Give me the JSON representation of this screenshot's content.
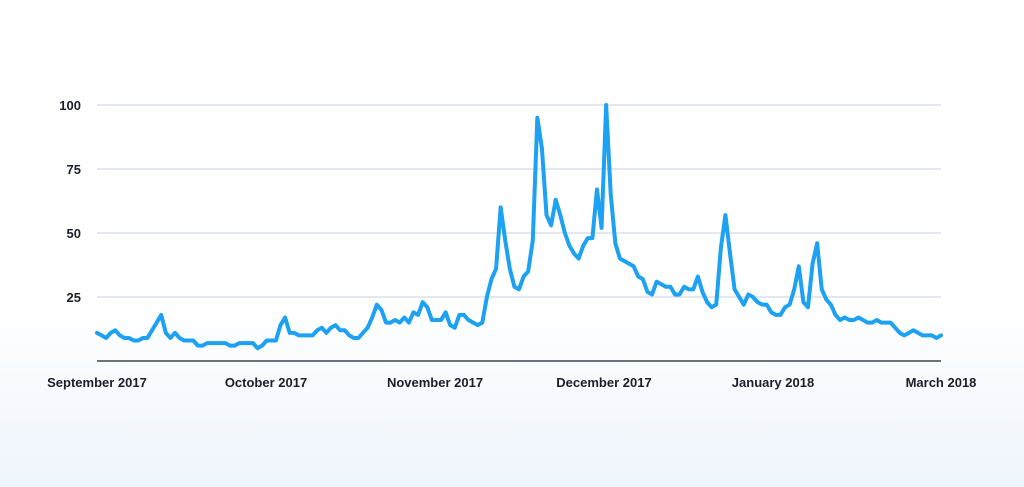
{
  "chart_data": {
    "type": "line",
    "title": "",
    "xlabel": "",
    "ylabel": "",
    "ylim": [
      0,
      100
    ],
    "yticks": [
      25,
      50,
      75,
      100
    ],
    "grid": true,
    "x_tick_labels": [
      "September 2017",
      "October 2017",
      "November 2017",
      "December 2017",
      "January 2018",
      "March 2018"
    ],
    "series_color": "#1da1f2",
    "series": [
      {
        "values": [
          11,
          10,
          9,
          11,
          12,
          10,
          9,
          9,
          8,
          8,
          9,
          9,
          12,
          15,
          18,
          11,
          9,
          11,
          9,
          8,
          8,
          8,
          6,
          6,
          7,
          7,
          7,
          7,
          7,
          6,
          6,
          7,
          7,
          7,
          7,
          5,
          6,
          8,
          8,
          8,
          14,
          17,
          11,
          11,
          10,
          10,
          10,
          10,
          12,
          13,
          11,
          13,
          14,
          12,
          12,
          10,
          9,
          9,
          11,
          13,
          17,
          22,
          20,
          15,
          15,
          16,
          15,
          17,
          15,
          19,
          18,
          23,
          21,
          16,
          16,
          16,
          19,
          14,
          13,
          18,
          18,
          16,
          15,
          14,
          15,
          25,
          32,
          36,
          60,
          47,
          36,
          29,
          28,
          33,
          35,
          47,
          95,
          83,
          57,
          53,
          63,
          57,
          50,
          45,
          42,
          40,
          45,
          48,
          48,
          67,
          52,
          100,
          65,
          46,
          40,
          39,
          38,
          37,
          33,
          32,
          27,
          26,
          31,
          30,
          29,
          29,
          26,
          26,
          29,
          28,
          28,
          33,
          27,
          23,
          21,
          22,
          44,
          57,
          42,
          28,
          25,
          22,
          26,
          25,
          23,
          22,
          22,
          19,
          18,
          18,
          21,
          22,
          28,
          37,
          23,
          21,
          38,
          46,
          28,
          24,
          22,
          18,
          16,
          17,
          16,
          16,
          17,
          16,
          15,
          15,
          16,
          15,
          15,
          15,
          13,
          11,
          10,
          11,
          12,
          11,
          10,
          10,
          10,
          9,
          10
        ]
      }
    ]
  }
}
